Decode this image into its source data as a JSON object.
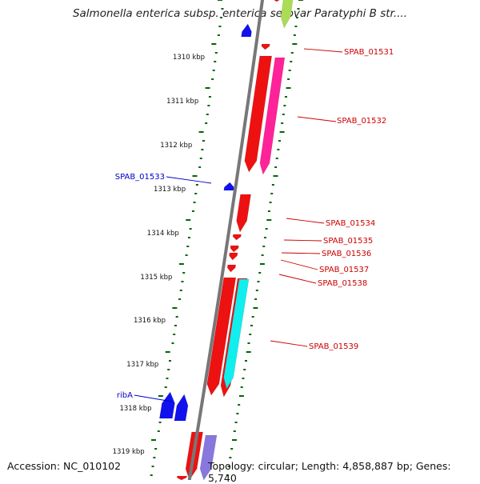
{
  "title": "Salmonella enterica subsp. enterica serovar Paratyphi B str....",
  "footer": {
    "accession": "Accession: NC_010102",
    "topology": "Topology: circular; Length: 4,858,887 bp; Genes: 5,740"
  },
  "colors": {
    "forward_cds": "#ee1111",
    "forward_pink": "#ff2299",
    "forward_cyan": "#11eeee",
    "reverse_cds": "#1111ee",
    "reverse_lavender": "#8877dd",
    "label_forward": "#cc0000",
    "label_reverse": "#0000cc",
    "tick_color": "#006600",
    "backbone": "#777777"
  },
  "ticks": [
    {
      "kbp": 1310,
      "label": "1310 kbp"
    },
    {
      "kbp": 1311,
      "label": "1311 kbp"
    },
    {
      "kbp": 1312,
      "label": "1312 kbp"
    },
    {
      "kbp": 1313,
      "label": "1313 kbp"
    },
    {
      "kbp": 1314,
      "label": "1314 kbp"
    },
    {
      "kbp": 1315,
      "label": "1315 kbp"
    },
    {
      "kbp": 1316,
      "label": "1316 kbp"
    },
    {
      "kbp": 1317,
      "label": "1317 kbp"
    },
    {
      "kbp": 1318,
      "label": "1318 kbp"
    },
    {
      "kbp": 1319,
      "label": "1319 kbp"
    }
  ],
  "gene_labels": [
    {
      "name": "SPAB_01531",
      "strand": "forward"
    },
    {
      "name": "SPAB_01532",
      "strand": "forward"
    },
    {
      "name": "SPAB_01533",
      "strand": "reverse"
    },
    {
      "name": "SPAB_01534",
      "strand": "forward"
    },
    {
      "name": "SPAB_01535",
      "strand": "forward"
    },
    {
      "name": "SPAB_01536",
      "strand": "forward"
    },
    {
      "name": "SPAB_01537",
      "strand": "forward"
    },
    {
      "name": "SPAB_01538",
      "strand": "forward"
    },
    {
      "name": "SPAB_01539",
      "strand": "forward"
    },
    {
      "name": "ribA",
      "strand": "reverse"
    }
  ]
}
